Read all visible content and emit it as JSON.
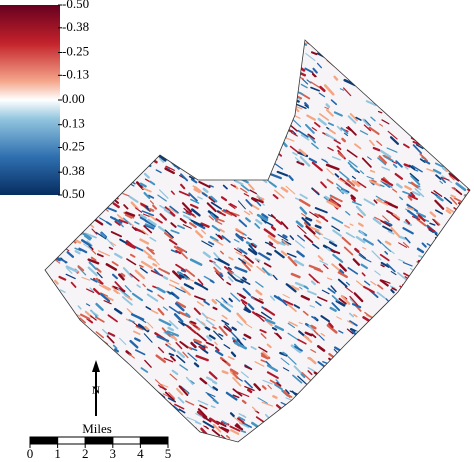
{
  "colorbar": {
    "ticks": [
      {
        "value": -0.5,
        "label": "-0.50"
      },
      {
        "value": -0.38,
        "label": "-0.38"
      },
      {
        "value": -0.25,
        "label": "-0.25"
      },
      {
        "value": -0.13,
        "label": "-0.13"
      },
      {
        "value": 0,
        "label": "0.00"
      },
      {
        "value": 0.13,
        "label": "0.13"
      },
      {
        "value": 0.25,
        "label": "0.25"
      },
      {
        "value": 0.38,
        "label": "0.38"
      },
      {
        "value": 0.5,
        "label": "0.50"
      }
    ]
  },
  "north_label": "N",
  "scale_bar": {
    "label": "Miles",
    "ticks": [
      0,
      1,
      2,
      3,
      4,
      5
    ]
  }
}
